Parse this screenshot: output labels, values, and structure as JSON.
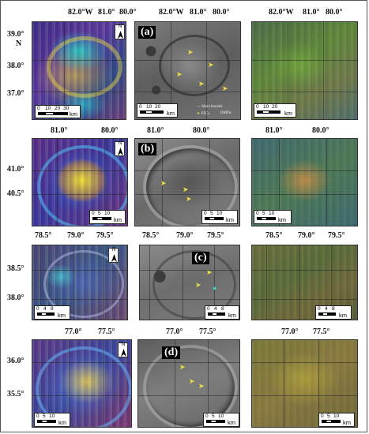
{
  "rows": [
    {
      "label": "(a)",
      "lon_ticks": [
        "82.0°W",
        "81.0°",
        "80.0°"
      ],
      "lat_ticks": [
        "39.0°",
        "38.0°",
        "37.0°"
      ],
      "lat_suffix": "N",
      "scale_ticks": [
        "0",
        "10",
        "20",
        "30"
      ],
      "unit": "km"
    },
    {
      "label": "(b)",
      "lon_ticks": [
        "81.0°",
        "80.0°"
      ],
      "lat_ticks": [
        "41.0°",
        "40.5°"
      ],
      "scale_ticks": [
        "0",
        "5",
        "10"
      ],
      "unit": "km"
    },
    {
      "label": "(c)",
      "lon_ticks": [
        "78.5°",
        "79.0°",
        "79.5°"
      ],
      "lat_ticks": [
        "38.5°",
        "38.0°"
      ],
      "scale_ticks": [
        "0",
        "4",
        "8"
      ],
      "unit": "km"
    },
    {
      "label": "(d)",
      "lon_ticks": [
        "77.0°",
        "77.5°"
      ],
      "lat_ticks": [
        "36.0°",
        "35.5°"
      ],
      "scale_ticks": [
        "0",
        "5",
        "10"
      ],
      "unit": "km"
    }
  ],
  "north_label": "N",
  "legend": {
    "mare_bounds": "Mare bounds",
    "ffcs": "FFCs",
    "dmds": "DMDs"
  },
  "colors": {
    "rgb_base": "#3a3f7a",
    "gray_base": "#6b6b6b",
    "ratio_base": "#4f7a3e",
    "highlight_yellow": "#f0e040"
  }
}
